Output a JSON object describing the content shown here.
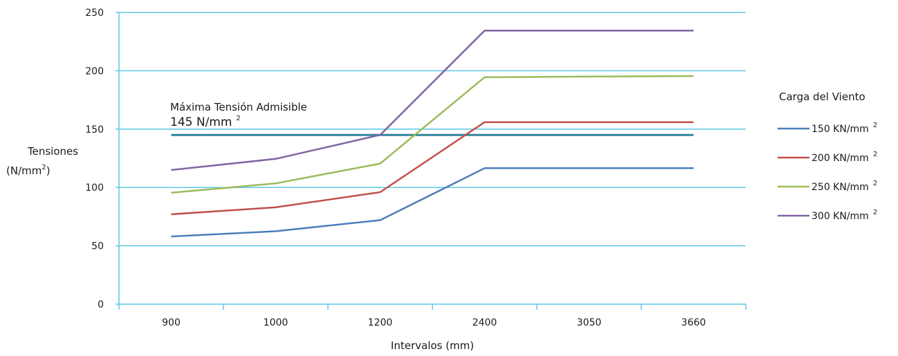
{
  "chart_data": {
    "type": "line",
    "title": "",
    "categories": [
      "900",
      "1000",
      "1200",
      "2400",
      "3050",
      "3660"
    ],
    "xlabel": "Intervalos (mm)",
    "ylabel": "Tensiones",
    "ylabel_unit": "(N/mm",
    "ylabel_unit_sup": "2",
    "ylabel_unit_close": ")",
    "ylim": [
      0,
      250
    ],
    "yticks": [
      "0",
      "50",
      "100",
      "150",
      "200",
      "250"
    ],
    "grid": true,
    "legend_title": "Carga del Viento",
    "legend_position": "right",
    "series": [
      {
        "name": "150 KN/mm",
        "sup": "2",
        "color": "#4a7ebb",
        "values": [
          58,
          62.5,
          72,
          116.5,
          116.5,
          116.5
        ]
      },
      {
        "name": "200 KN/mm",
        "sup": "2",
        "color": "#c0504d",
        "values": [
          77,
          83,
          96,
          156,
          156,
          156
        ]
      },
      {
        "name": "250 KN/mm",
        "sup": "2",
        "color": "#9bbb59",
        "values": [
          95.5,
          103.5,
          120.5,
          194.5,
          195,
          195.5
        ]
      },
      {
        "name": "300 KN/mm",
        "sup": "2",
        "color": "#8064a2",
        "values": [
          115,
          124.5,
          145,
          234.5,
          234.5,
          234.5
        ]
      }
    ],
    "reference_line": {
      "value": 145,
      "color": "#31859c",
      "label": "Máxima Tensión Admisible",
      "value_label": "145 N/mm",
      "value_label_sup": "2"
    },
    "colors": {
      "grid": "#5bc8e6",
      "axis": "#5bc8e6"
    }
  }
}
